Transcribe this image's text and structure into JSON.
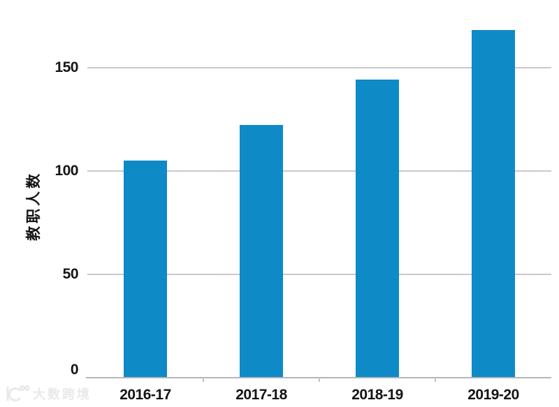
{
  "chart_data": {
    "type": "bar",
    "title": "",
    "categories": [
      "2016-17",
      "2017-18",
      "2018-19",
      "2019-20"
    ],
    "values": [
      105,
      122,
      144,
      168
    ],
    "xlabel": "",
    "ylabel": "教职人数",
    "yticks": [
      0,
      50,
      100,
      150
    ],
    "ylim": [
      0,
      183
    ],
    "grid": true,
    "legend": false,
    "bar_color": "#0E8AC6",
    "grid_color": "#C9C9C9",
    "axis_color": "#B5B5B5",
    "tick_color": "#C2C2C2",
    "text_color": "#141414"
  },
  "watermark": {
    "icon": "brand-swoosh-logo",
    "text": "大数跨境",
    "color": "#E9E9E9"
  }
}
